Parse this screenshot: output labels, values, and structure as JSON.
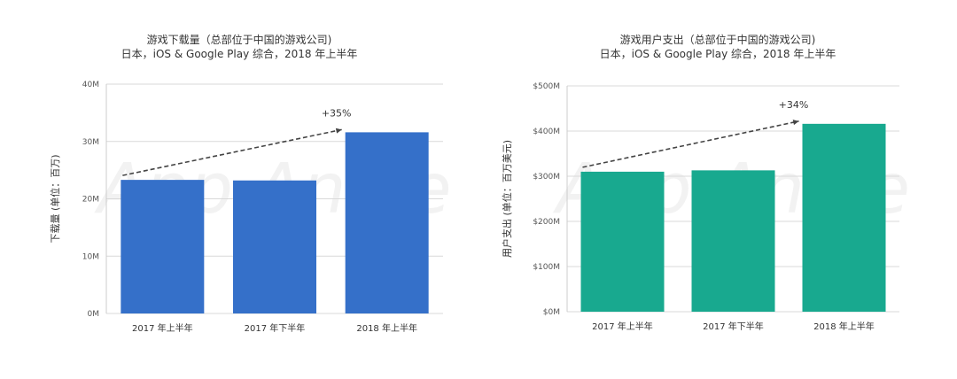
{
  "chart_data": [
    {
      "type": "bar",
      "title": "游戏下载量（总部位于中国的游戏公司)",
      "subtitle": "日本，iOS & Google Play 综合，2018 年上半年",
      "xlabel": "",
      "ylabel": "下载量 (单位：百万)",
      "categories": [
        "2017 年上半年",
        "2017 年下半年",
        "2018 年上半年"
      ],
      "values": [
        23.3,
        23.2,
        31.6
      ],
      "ylim": [
        0,
        40
      ],
      "yticks": [
        0,
        10,
        20,
        30,
        40
      ],
      "ytick_labels": [
        "0M",
        "10M",
        "20M",
        "30M",
        "40M"
      ],
      "color": "#3570c9",
      "annotation": {
        "text": "+35%",
        "from_category": 0,
        "to_category": 2
      },
      "grid": true,
      "watermark": "App Annie"
    },
    {
      "type": "bar",
      "title": "游戏用户支出（总部位于中国的游戏公司)",
      "subtitle": "日本，iOS & Google Play 综合，2018 年上半年",
      "xlabel": "",
      "ylabel": "用户支出 (单位：百万美元)",
      "categories": [
        "2017 年上半年",
        "2017 年下半年",
        "2018 年上半年"
      ],
      "values": [
        310,
        313,
        416
      ],
      "ylim": [
        0,
        500
      ],
      "yticks": [
        0,
        100,
        200,
        300,
        400,
        500
      ],
      "ytick_labels": [
        "$0M",
        "$100M",
        "$200M",
        "$300M",
        "$400M",
        "$500M"
      ],
      "color": "#18a98f",
      "annotation": {
        "text": "+34%",
        "from_category": 0,
        "to_category": 2
      },
      "grid": true,
      "watermark": "App Annie"
    }
  ]
}
